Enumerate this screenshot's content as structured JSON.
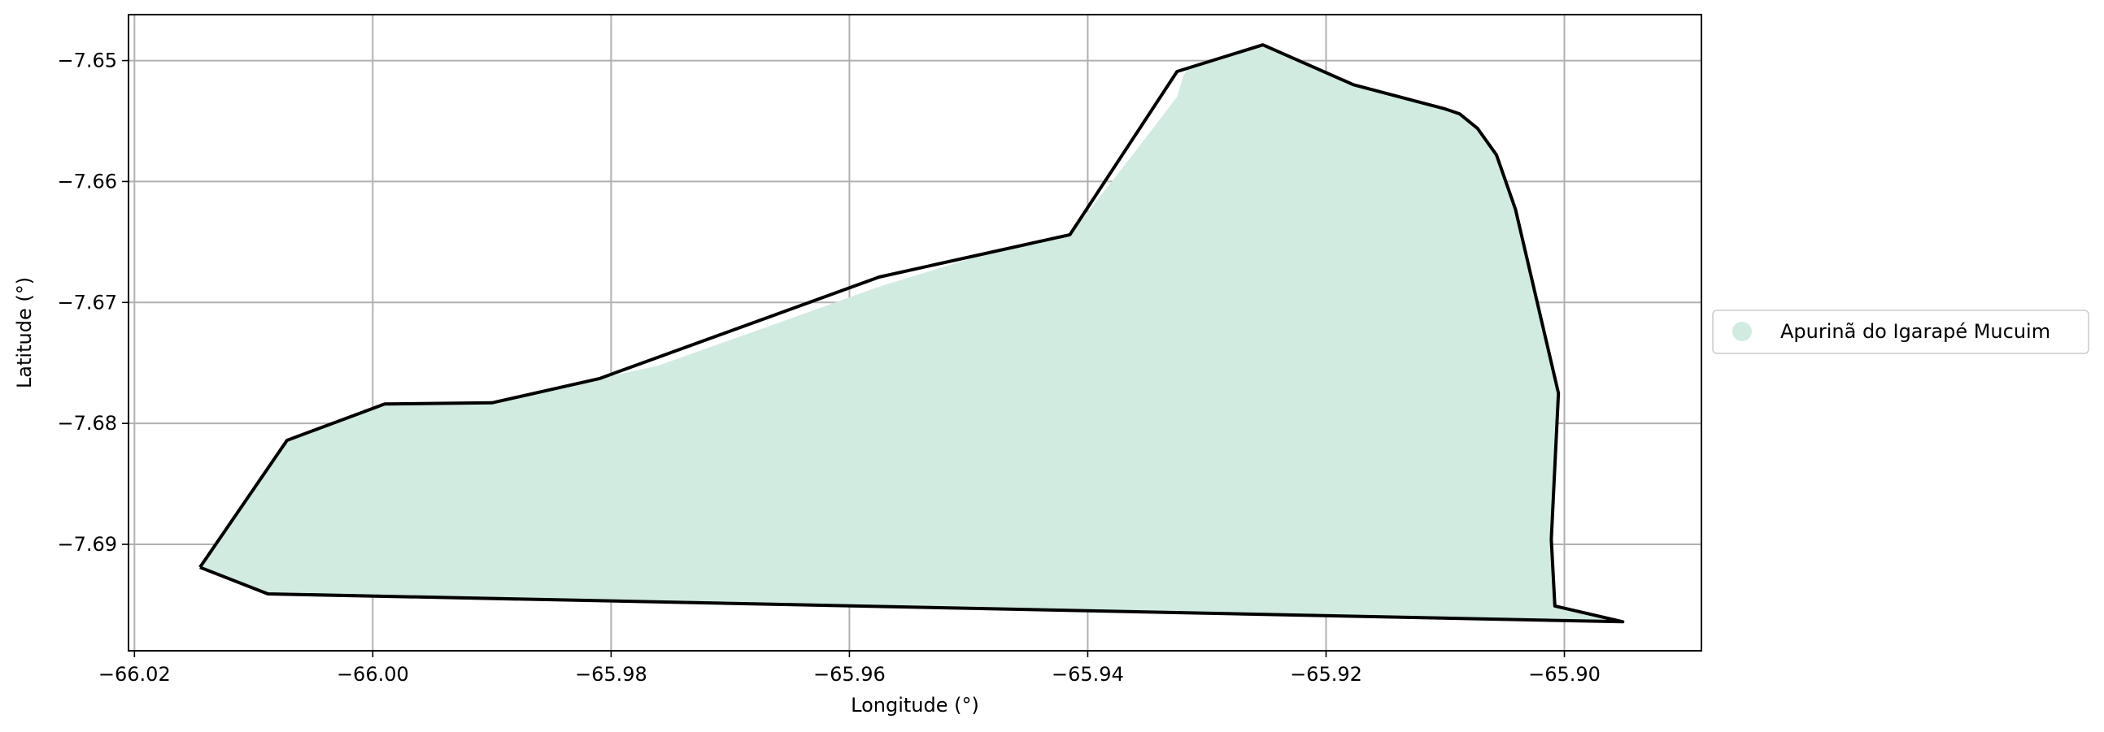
{
  "chart_data": {
    "type": "map",
    "xlabel": "Longitude (°)",
    "ylabel": "Latitude (°)",
    "xlim": [
      -66.0205,
      -65.8885
    ],
    "ylim": [
      -7.6988,
      -7.6462
    ],
    "xticks": [
      -66.02,
      -66.0,
      -65.98,
      -65.96,
      -65.94,
      -65.92,
      -65.9
    ],
    "xtick_labels": [
      "−66.02",
      "−66.00",
      "−65.98",
      "−65.96",
      "−65.94",
      "−65.92",
      "−65.90"
    ],
    "yticks": [
      -7.65,
      -7.66,
      -7.67,
      -7.68,
      -7.69
    ],
    "ytick_labels": [
      "−7.65",
      "−7.66",
      "−7.67",
      "−7.68",
      "−7.69"
    ],
    "grid": true,
    "legend": {
      "placement": "center-right outside",
      "entries": [
        {
          "label": "Apurinã do Igarapé Mucuim",
          "color": "#d1ebe1"
        }
      ]
    },
    "fill_polygon": {
      "name": "Apurinã do Igarapé Mucuim",
      "color": "#d1ebe1",
      "points": [
        [
          -65.932,
          -7.6513
        ],
        [
          -65.9315,
          -7.6505
        ],
        [
          -65.9253,
          -7.6487
        ],
        [
          -65.9177,
          -7.652
        ],
        [
          -65.91,
          -7.654
        ],
        [
          -65.9088,
          -7.6544
        ],
        [
          -65.9073,
          -7.6556
        ],
        [
          -65.9057,
          -7.6578
        ],
        [
          -65.9041,
          -7.6623
        ],
        [
          -65.9005,
          -7.6775
        ],
        [
          -65.9011,
          -7.6896
        ],
        [
          -65.9008,
          -7.6951
        ],
        [
          -65.8951,
          -7.6964
        ],
        [
          -66.0088,
          -7.6941
        ],
        [
          -66.0145,
          -7.6919
        ],
        [
          -66.0072,
          -7.6814
        ],
        [
          -65.999,
          -7.6784
        ],
        [
          -65.99,
          -7.6783
        ],
        [
          -65.981,
          -7.6763
        ],
        [
          -65.976,
          -7.6752
        ],
        [
          -65.966,
          -7.6717
        ],
        [
          -65.9575,
          -7.6687
        ],
        [
          -65.947,
          -7.6655
        ],
        [
          -65.9415,
          -7.6644
        ],
        [
          -65.936,
          -7.6575
        ],
        [
          -65.9325,
          -7.653
        ]
      ]
    },
    "boundary": {
      "color": "#000000",
      "points": [
        [
          -66.0145,
          -7.6919
        ],
        [
          -66.0072,
          -7.6814
        ],
        [
          -65.999,
          -7.6784
        ],
        [
          -65.99,
          -7.6783
        ],
        [
          -65.981,
          -7.6763
        ],
        [
          -65.9575,
          -7.6679
        ],
        [
          -65.9415,
          -7.6644
        ],
        [
          -65.9325,
          -7.6509
        ],
        [
          -65.9253,
          -7.6487
        ],
        [
          -65.9177,
          -7.652
        ],
        [
          -65.91,
          -7.654
        ],
        [
          -65.9088,
          -7.6544
        ],
        [
          -65.9073,
          -7.6556
        ],
        [
          -65.9057,
          -7.6578
        ],
        [
          -65.9041,
          -7.6623
        ],
        [
          -65.9005,
          -7.6775
        ],
        [
          -65.9011,
          -7.6896
        ],
        [
          -65.9008,
          -7.6951
        ],
        [
          -65.8951,
          -7.6964
        ],
        [
          -66.0088,
          -7.6941
        ],
        [
          -66.0145,
          -7.6919
        ]
      ]
    }
  }
}
